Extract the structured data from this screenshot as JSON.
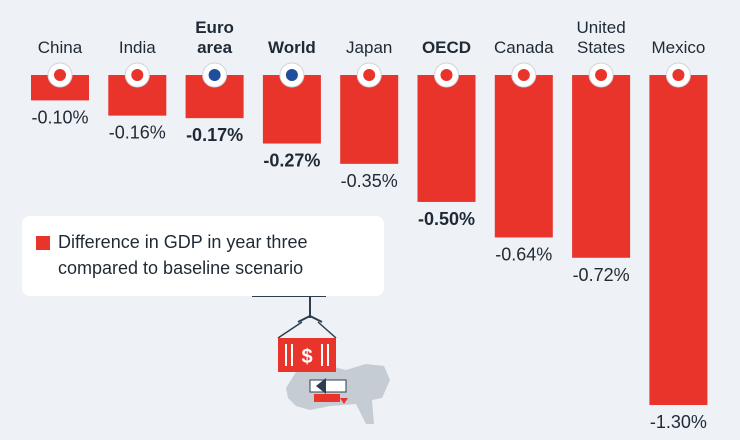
{
  "colors": {
    "bar": "#e8342a",
    "text": "#1f2a36",
    "background": "#eef1f5"
  },
  "legend": {
    "text": "Difference in GDP in year three compared to baseline scenario"
  },
  "chart_data": {
    "type": "bar",
    "orientation": "vertical",
    "categories": [
      "China",
      "India",
      "Euro area",
      "World",
      "Japan",
      "OECD",
      "Canada",
      "United States",
      "Mexico"
    ],
    "category_lines": [
      [
        "China"
      ],
      [
        "India"
      ],
      [
        "Euro",
        "area"
      ],
      [
        "World"
      ],
      [
        "Japan"
      ],
      [
        "OECD"
      ],
      [
        "Canada"
      ],
      [
        "United",
        "States"
      ],
      [
        "Mexico"
      ]
    ],
    "bold": [
      false,
      false,
      true,
      true,
      false,
      true,
      false,
      false,
      false
    ],
    "flag_icons": [
      "china-flag-icon",
      "india-flag-icon",
      "euro-area-flag-icon",
      "world-icon",
      "japan-flag-icon",
      "oecd-logo-icon",
      "canada-flag-icon",
      "united-states-flag-icon",
      "mexico-flag-icon"
    ],
    "series": [
      {
        "name": "Difference in GDP in year three compared to baseline scenario",
        "values": [
          -0.1,
          -0.16,
          -0.17,
          -0.27,
          -0.35,
          -0.5,
          -0.64,
          -0.72,
          -1.3
        ]
      }
    ],
    "value_labels": [
      "-0.10%",
      "-0.16%",
      "-0.17%",
      "-0.27%",
      "-0.35%",
      "-0.50%",
      "-0.64%",
      "-0.72%",
      "-1.30%"
    ],
    "ylim": [
      -1.3,
      0
    ],
    "grid": false,
    "legend_position": "middle-left"
  }
}
